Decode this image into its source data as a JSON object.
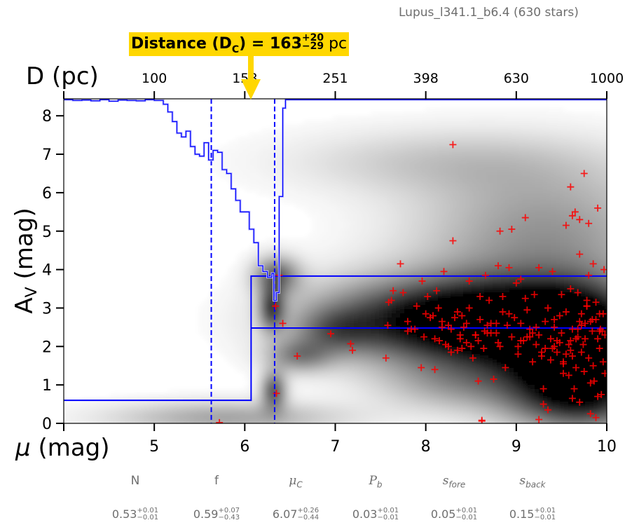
{
  "title": "Lupus_l341.1_b6.4 (630 stars)",
  "distance_label": {
    "prefix": "Distance (D",
    "subscript": "C",
    "middle": ") = 163",
    "plus": "+20",
    "minus": "−29",
    "unit": " pc"
  },
  "parameters": [
    {
      "name": "N",
      "sub": "",
      "italic": false,
      "value": "0.53",
      "plus": "+0.01",
      "minus": "−0.01"
    },
    {
      "name": "f",
      "sub": "",
      "italic": false,
      "value": "0.59",
      "plus": "+0.07",
      "minus": "−0.43"
    },
    {
      "name": "μ",
      "sub": "C",
      "italic": true,
      "value": "6.07",
      "plus": "+0.26",
      "minus": "−0.44"
    },
    {
      "name": "P",
      "sub": "b",
      "italic": true,
      "value": "0.03",
      "plus": "+0.01",
      "minus": "−0.01"
    },
    {
      "name": "s",
      "sub": "fore",
      "italic": true,
      "value": "0.05",
      "plus": "+0.01",
      "minus": "−0.01"
    },
    {
      "name": "s",
      "sub": "back",
      "italic": true,
      "value": "0.15",
      "plus": "+0.01",
      "minus": "−0.01"
    }
  ],
  "colors": {
    "accent_yellow": "#ffd700",
    "model_blue": "#0000ff",
    "star_red": "#ff0000",
    "axis_black": "#000000",
    "muted_text": "#6e6e6e"
  },
  "chart_data": {
    "type": "scatter",
    "title": "Lupus_l341.1_b6.4 (630 stars)",
    "xlabel": "μ (mag)",
    "ylabel": "A_V (mag)",
    "top_xlabel": "D (pc)",
    "xlim": [
      4,
      10
    ],
    "ylim": [
      0,
      8.45
    ],
    "x_ticks": [
      4,
      5,
      6,
      7,
      8,
      9,
      10
    ],
    "x_tick_labels": [
      "",
      "5",
      "6",
      "7",
      "8",
      "9",
      "10"
    ],
    "y_ticks": [
      0,
      1,
      2,
      3,
      4,
      5,
      6,
      7,
      8
    ],
    "y_tick_labels": [
      "0",
      "1",
      "2",
      "3",
      "4",
      "5",
      "6",
      "7",
      "8"
    ],
    "top_ticks_mu": [
      4,
      5,
      6,
      7,
      8,
      9,
      10
    ],
    "top_tick_labels": [
      "",
      "100",
      "158",
      "251",
      "398",
      "630",
      "1000"
    ],
    "distance_marker_mu": 6.06,
    "model": {
      "mu_c": 6.07,
      "foreground_av": 0.6,
      "background_av_upper": 3.83,
      "background_av_lower": 2.48
    },
    "uncertainty_lines_mu": [
      5.63,
      6.33
    ],
    "cumulative_distribution_mu": [
      4.0,
      4.1,
      4.2,
      4.3,
      4.4,
      4.5,
      4.6,
      4.7,
      4.8,
      4.9,
      5.0,
      5.1,
      5.15,
      5.2,
      5.25,
      5.3,
      5.35,
      5.4,
      5.45,
      5.5,
      5.55,
      5.6,
      5.65,
      5.7,
      5.75,
      5.8,
      5.85,
      5.9,
      5.95,
      6.0,
      6.05,
      6.1,
      6.15,
      6.2,
      6.25,
      6.3,
      6.32,
      6.35,
      6.38,
      6.42,
      6.45,
      6.5,
      10.0
    ],
    "cumulative_distribution_av": [
      8.42,
      8.4,
      8.41,
      8.39,
      8.42,
      8.38,
      8.41,
      8.4,
      8.39,
      8.42,
      8.4,
      8.3,
      8.1,
      7.85,
      7.55,
      7.45,
      7.6,
      7.2,
      7.0,
      6.95,
      7.3,
      6.85,
      7.1,
      7.05,
      6.6,
      6.5,
      6.1,
      5.8,
      5.5,
      5.5,
      5.05,
      4.7,
      4.1,
      3.95,
      3.8,
      3.9,
      3.2,
      3.4,
      5.9,
      8.2,
      8.42,
      8.42,
      8.42
    ],
    "density_blobs": [
      {
        "mu": 6.35,
        "av": 3.85,
        "sigma_mu": 0.18,
        "sigma_av": 0.35,
        "weight": 0.55
      },
      {
        "mu": 6.3,
        "av": 3.0,
        "sigma_mu": 0.1,
        "sigma_av": 0.4,
        "weight": 0.6
      },
      {
        "mu": 6.32,
        "av": 0.85,
        "sigma_mu": 0.1,
        "sigma_av": 0.35,
        "weight": 0.6
      },
      {
        "mu": 6.6,
        "av": 1.75,
        "sigma_mu": 0.25,
        "sigma_av": 0.3,
        "weight": 0.4
      },
      {
        "mu": 5.8,
        "av": 0.15,
        "sigma_mu": 0.9,
        "sigma_av": 0.3,
        "weight": 0.35
      },
      {
        "mu": 7.0,
        "av": 2.4,
        "sigma_mu": 0.3,
        "sigma_av": 0.4,
        "weight": 0.3
      },
      {
        "mu": 7.9,
        "av": 2.7,
        "sigma_mu": 0.9,
        "sigma_av": 0.75,
        "weight": 0.75
      },
      {
        "mu": 9.0,
        "av": 2.5,
        "sigma_mu": 0.8,
        "sigma_av": 0.9,
        "weight": 0.85
      },
      {
        "mu": 9.7,
        "av": 2.0,
        "sigma_mu": 0.5,
        "sigma_av": 1.0,
        "weight": 1.0
      },
      {
        "mu": 9.7,
        "av": 0.6,
        "sigma_mu": 0.6,
        "sigma_av": 0.6,
        "weight": 0.6
      },
      {
        "mu": 9.3,
        "av": 5.0,
        "sigma_mu": 1.0,
        "sigma_av": 1.2,
        "weight": 0.4
      },
      {
        "mu": 8.2,
        "av": 6.8,
        "sigma_mu": 1.2,
        "sigma_av": 0.6,
        "weight": 0.2
      },
      {
        "mu": 8.3,
        "av": 1.0,
        "sigma_mu": 0.6,
        "sigma_av": 0.5,
        "weight": 0.25
      }
    ],
    "stars_mu": [
      5.72,
      6.35,
      6.34,
      6.38,
      6.42,
      6.58,
      6.95,
      7.17,
      7.19,
      7.56,
      7.58,
      7.59,
      7.62,
      7.64,
      7.72,
      7.75,
      7.8,
      7.84,
      7.9,
      7.95,
      7.96,
      8.0,
      8.02,
      8.05,
      8.1,
      8.12,
      8.14,
      8.18,
      8.2,
      8.22,
      8.25,
      8.28,
      8.3,
      8.32,
      8.35,
      8.38,
      8.4,
      8.42,
      8.45,
      8.48,
      8.5,
      8.52,
      8.55,
      8.58,
      8.6,
      8.62,
      8.64,
      8.66,
      8.7,
      8.72,
      8.75,
      8.78,
      8.8,
      8.82,
      8.85,
      8.88,
      8.9,
      8.92,
      8.95,
      8.98,
      9.0,
      9.02,
      9.05,
      9.08,
      9.1,
      9.12,
      9.15,
      9.18,
      9.2,
      9.22,
      9.25,
      9.28,
      9.3,
      9.32,
      9.35,
      9.38,
      9.4,
      9.42,
      9.45,
      9.48,
      9.5,
      9.52,
      9.55,
      9.58,
      9.6,
      9.62,
      9.64,
      9.66,
      9.68,
      9.7,
      9.72,
      9.74,
      9.76,
      9.78,
      9.8,
      9.82,
      9.84,
      9.86,
      9.88,
      9.9,
      9.92,
      9.94,
      9.96,
      9.98,
      8.3,
      9.7,
      9.6,
      9.62,
      9.65,
      9.75,
      9.85,
      9.97,
      9.8,
      9.4,
      9.05,
      9.25,
      8.95,
      8.82,
      9.9,
      9.7,
      9.5,
      9.55,
      9.68,
      9.8,
      9.92,
      9.1,
      9.35,
      9.6,
      9.78,
      9.88,
      9.95,
      9.72,
      9.84,
      9.6,
      9.45,
      9.62,
      9.75,
      9.82,
      9.9,
      9.98,
      9.3,
      9.25,
      8.62,
      8.6,
      8.25,
      8.1,
      8.72,
      9.15,
      9.42,
      9.55,
      9.7,
      9.85,
      9.52,
      9.66,
      9.76,
      9.93,
      8.4,
      8.55,
      8.68,
      8.8,
      8.92,
      9.02,
      9.12,
      9.22,
      9.32,
      9.42,
      9.52,
      9.62,
      9.72,
      9.82,
      9.92,
      8.15,
      8.35,
      8.45,
      8.65,
      8.85,
      9.05,
      9.18,
      9.28,
      9.38,
      9.48,
      9.58,
      9.68,
      9.78,
      9.88,
      9.96,
      7.8,
      7.88,
      7.98,
      8.08,
      8.18,
      8.28,
      8.38,
      8.48,
      8.58,
      8.68,
      8.78,
      8.88,
      8.98,
      9.08,
      9.18
    ],
    "stars_av": [
      0.02,
      0.78,
      3.05,
      3.85,
      2.6,
      1.75,
      2.33,
      2.07,
      1.9,
      1.7,
      2.55,
      3.15,
      3.2,
      3.45,
      4.15,
      3.4,
      2.4,
      2.45,
      3.05,
      1.45,
      3.7,
      2.85,
      3.3,
      2.75,
      2.2,
      3.45,
      3.0,
      2.65,
      3.95,
      2.05,
      2.55,
      1.85,
      7.25,
      2.75,
      2.9,
      2.3,
      1.95,
      2.5,
      2.1,
      3.7,
      2.0,
      1.7,
      2.3,
      1.1,
      2.7,
      0.08,
      1.95,
      3.85,
      3.2,
      2.6,
      1.15,
      2.35,
      4.1,
      2.0,
      3.3,
      1.45,
      2.55,
      4.05,
      2.25,
      2.75,
      3.65,
      1.8,
      2.6,
      2.15,
      5.35,
      2.95,
      2.45,
      1.6,
      3.35,
      2.05,
      2.3,
      1.75,
      0.5,
      2.65,
      0.35,
      2.2,
      1.95,
      2.5,
      1.85,
      2.8,
      2.35,
      1.55,
      5.15,
      1.25,
      2.15,
      0.65,
      0.9,
      1.45,
      2.45,
      0.55,
      1.85,
      2.05,
      2.6,
      3.05,
      1.7,
      0.25,
      2.4,
      1.1,
      0.15,
      2.2,
      1.95,
      0.75,
      1.6,
      2.3,
      4.75,
      5.3,
      6.15,
      5.4,
      5.5,
      6.5,
      4.15,
      4.0,
      5.2,
      3.95,
      3.75,
      4.05,
      5.05,
      5.0,
      5.6,
      4.4,
      3.35,
      2.9,
      3.4,
      3.85,
      2.85,
      3.25,
      3.0,
      3.5,
      3.2,
      3.15,
      2.4,
      2.55,
      2.7,
      1.9,
      2.15,
      2.45,
      1.35,
      1.05,
      0.7,
      1.3,
      0.9,
      0.1,
      0.06,
      3.3,
      2.0,
      1.4,
      2.35,
      2.25,
      2.0,
      1.8,
      2.65,
      1.5,
      1.3,
      2.2,
      2.2,
      2.45,
      2.8,
      2.3,
      2.55,
      2.1,
      2.85,
      2.0,
      2.25,
      2.5,
      1.95,
      2.7,
      1.6,
      1.75,
      2.85,
      2.65,
      2.4,
      2.15,
      1.9,
      2.6,
      2.4,
      2.9,
      2.15,
      2.35,
      1.85,
      1.65,
      2.1,
      2.05,
      2.25,
      3.05,
      2.7,
      2.85,
      2.65,
      2.45,
      2.25,
      2.8,
      2.5,
      2.45,
      2.2,
      3.0,
      2.15,
      2.35,
      2.6
    ]
  }
}
